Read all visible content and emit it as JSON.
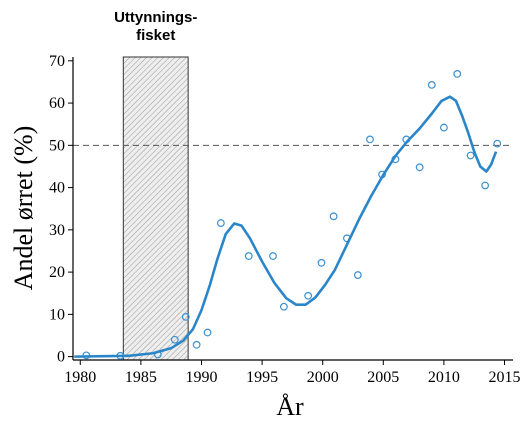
{
  "chart_data": {
    "type": "scatter",
    "xlabel": "År",
    "ylabel": "Andel ørret (%)",
    "xlim": [
      1979.4,
      2015.7
    ],
    "ylim": [
      -0.8,
      70.9
    ],
    "xticks": [
      1980,
      1985,
      1990,
      1995,
      2000,
      2005,
      2010,
      2015
    ],
    "yticks": [
      0,
      10,
      20,
      30,
      40,
      50,
      60,
      70
    ],
    "reference_line": {
      "y": 50,
      "color": "#555555"
    },
    "shaded_span": {
      "x": [
        1983.55,
        1988.9
      ],
      "label": [
        "Uttynnings-",
        "fisket"
      ]
    },
    "series": [
      {
        "kind": "points",
        "color": "#3a8fcf",
        "x": [
          1980.5,
          1983.3,
          1986.4,
          1987.8,
          1988.7,
          1989.6,
          1990.5,
          1991.6,
          1993.9,
          1995.9,
          1996.8,
          1998.8,
          1999.9,
          2000.9,
          2002.0,
          2002.9,
          2003.9,
          2004.9,
          2006.0,
          2006.9,
          2008.0,
          2009.0,
          2010.0,
          2011.1,
          2012.2,
          2013.4,
          2014.4
        ],
        "values": [
          0.3,
          0.2,
          0.5,
          4,
          9.4,
          2.8,
          5.7,
          31.6,
          23.8,
          23.8,
          11.8,
          14.4,
          22.2,
          33.2,
          28,
          19.3,
          51.4,
          43.1,
          46.7,
          51.4,
          44.8,
          64.3,
          54.2,
          66.9,
          47.6,
          40.5,
          50.4
        ]
      },
      {
        "kind": "curve",
        "color": "#2a86c8",
        "x": [
          1979.5,
          1984,
          1986,
          1987.5,
          1988.5,
          1989.3,
          1990,
          1990.7,
          1991.3,
          1992,
          1992.7,
          1993.3,
          1994,
          1995,
          1996,
          1997,
          1997.8,
          1998.6,
          1999.4,
          2000.2,
          2001,
          2002,
          2003,
          2004,
          2005,
          2006,
          2007,
          2008,
          2009,
          2009.8,
          2010.5,
          2011,
          2011.5,
          2012,
          2012.5,
          2013,
          2013.5,
          2013.9,
          2014.3
        ],
        "values": [
          0,
          0.2,
          0.8,
          2,
          3.8,
          6.5,
          11,
          17,
          23,
          29,
          31.5,
          31,
          28,
          22.5,
          17.5,
          13.8,
          12.3,
          12.3,
          14,
          17,
          20.5,
          26.5,
          32.5,
          38,
          43,
          47.5,
          51,
          54,
          57.5,
          60.5,
          61.5,
          60.5,
          57,
          53,
          48.5,
          45,
          43.8,
          45.5,
          48.5
        ]
      }
    ]
  }
}
